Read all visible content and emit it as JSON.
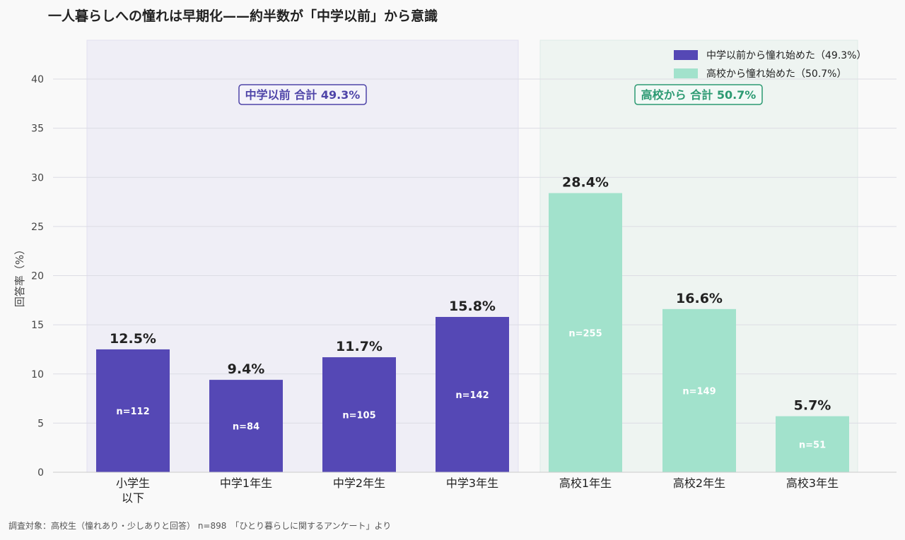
{
  "title": "一人暮らしへの憧れは早期化——約半数が「中学以前」から意識",
  "footnote": "調査対象：高校生（憧れあり・少しありと回答） n=898　「ひとり暮らしに関するアンケート」より",
  "colors": {
    "middle": "#5548b5",
    "high": "#a2e2cc",
    "middle_bg": "#efeef6",
    "high_bg": "#eef4f1",
    "middle_label": "#4e44a8",
    "high_label": "#2c9a72"
  },
  "chart_data": {
    "type": "bar",
    "ylabel": "回答率（%）",
    "ylim": [
      0,
      44
    ],
    "yticks": [
      0,
      5,
      10,
      15,
      20,
      25,
      30,
      35,
      40
    ],
    "grid": true,
    "legend_position": "top-right",
    "categories": [
      "小学生\n以下",
      "中学1年生",
      "中学2年生",
      "中学3年生",
      "高校1年生",
      "高校2年生",
      "高校3年生"
    ],
    "values": [
      12.5,
      9.4,
      11.7,
      15.8,
      28.4,
      16.6,
      5.7
    ],
    "value_labels": [
      "12.5%",
      "9.4%",
      "11.7%",
      "15.8%",
      "28.4%",
      "16.6%",
      "5.7%"
    ],
    "n_labels": [
      "n=112",
      "n=84",
      "n=105",
      "n=142",
      "n=255",
      "n=149",
      "n=51"
    ],
    "groups": [
      "middle",
      "middle",
      "middle",
      "middle",
      "high",
      "high",
      "high"
    ],
    "series": [
      {
        "name": "中学以前から憧れ始めた（49.3%）",
        "key": "middle"
      },
      {
        "name": "高校から憧れ始めた（50.7%）",
        "key": "high"
      }
    ],
    "annotations": [
      {
        "text": "中学以前 合計 49.3%",
        "group": "middle"
      },
      {
        "text": "高校から 合計 50.7%",
        "group": "high"
      }
    ]
  }
}
